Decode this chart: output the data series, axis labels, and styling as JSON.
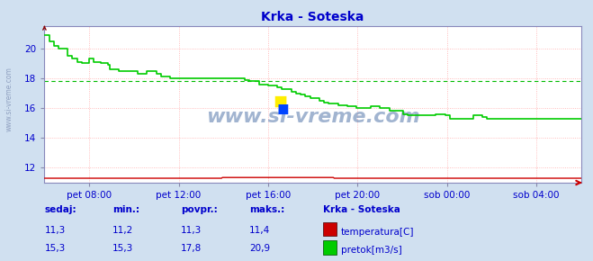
{
  "title": "Krka - Soteska",
  "bg_color": "#d0e0f0",
  "plot_bg_color": "#ffffff",
  "grid_color": "#ffaaaa",
  "avg_line_color": "#00bb00",
  "avg_line_value": 17.8,
  "x_tick_labels": [
    "pet 08:00",
    "pet 12:00",
    "pet 16:00",
    "pet 20:00",
    "sob 00:00",
    "sob 04:00"
  ],
  "x_tick_positions": [
    48,
    144,
    240,
    336,
    432,
    528
  ],
  "total_points": 288,
  "y_ticks": [
    12,
    14,
    16,
    18,
    20
  ],
  "ylim": [
    11.0,
    21.5
  ],
  "xlim": [
    0,
    576
  ],
  "temp_color": "#cc0000",
  "flow_color": "#00cc00",
  "watermark": "www.si-vreme.com",
  "legend_title": "Krka - Soteska",
  "legend_temp_label": "temperatura[C]",
  "legend_flow_label": "pretok[m3/s]",
  "stats_headers": [
    "sedaj:",
    "min.:",
    "povpr.:",
    "maks.:"
  ],
  "temp_stats": [
    "11,3",
    "11,2",
    "11,3",
    "11,4"
  ],
  "flow_stats": [
    "15,3",
    "15,3",
    "17,8",
    "20,9"
  ],
  "sidebar_text": "www.si-vreme.com",
  "flow_data": [
    [
      0,
      20.9
    ],
    [
      2,
      20.9
    ],
    [
      5,
      20.5
    ],
    [
      10,
      20.2
    ],
    [
      15,
      20.0
    ],
    [
      20,
      20.0
    ],
    [
      25,
      19.5
    ],
    [
      30,
      19.3
    ],
    [
      35,
      19.1
    ],
    [
      38,
      19.1
    ],
    [
      40,
      19.0
    ],
    [
      45,
      19.0
    ],
    [
      48,
      19.3
    ],
    [
      50,
      19.3
    ],
    [
      53,
      19.1
    ],
    [
      56,
      19.1
    ],
    [
      60,
      19.0
    ],
    [
      65,
      19.0
    ],
    [
      68,
      18.9
    ],
    [
      70,
      18.6
    ],
    [
      75,
      18.6
    ],
    [
      80,
      18.5
    ],
    [
      85,
      18.5
    ],
    [
      90,
      18.5
    ],
    [
      95,
      18.5
    ],
    [
      100,
      18.3
    ],
    [
      105,
      18.3
    ],
    [
      110,
      18.5
    ],
    [
      115,
      18.5
    ],
    [
      120,
      18.3
    ],
    [
      125,
      18.1
    ],
    [
      130,
      18.1
    ],
    [
      135,
      18.0
    ],
    [
      140,
      18.0
    ],
    [
      145,
      18.0
    ],
    [
      150,
      18.0
    ],
    [
      155,
      18.0
    ],
    [
      160,
      18.0
    ],
    [
      165,
      18.0
    ],
    [
      170,
      18.0
    ],
    [
      175,
      18.0
    ],
    [
      180,
      18.0
    ],
    [
      185,
      18.0
    ],
    [
      190,
      18.0
    ],
    [
      195,
      18.0
    ],
    [
      200,
      18.0
    ],
    [
      205,
      18.0
    ],
    [
      210,
      18.0
    ],
    [
      215,
      17.9
    ],
    [
      220,
      17.8
    ],
    [
      225,
      17.8
    ],
    [
      230,
      17.6
    ],
    [
      235,
      17.6
    ],
    [
      240,
      17.5
    ],
    [
      245,
      17.5
    ],
    [
      250,
      17.4
    ],
    [
      255,
      17.3
    ],
    [
      260,
      17.3
    ],
    [
      265,
      17.1
    ],
    [
      270,
      17.0
    ],
    [
      275,
      16.9
    ],
    [
      280,
      16.8
    ],
    [
      285,
      16.7
    ],
    [
      290,
      16.7
    ],
    [
      295,
      16.5
    ],
    [
      300,
      16.4
    ],
    [
      305,
      16.3
    ],
    [
      310,
      16.3
    ],
    [
      315,
      16.2
    ],
    [
      320,
      16.2
    ],
    [
      325,
      16.1
    ],
    [
      330,
      16.1
    ],
    [
      335,
      16.0
    ],
    [
      340,
      16.0
    ],
    [
      345,
      16.0
    ],
    [
      350,
      16.1
    ],
    [
      355,
      16.1
    ],
    [
      360,
      16.0
    ],
    [
      365,
      16.0
    ],
    [
      370,
      15.8
    ],
    [
      375,
      15.8
    ],
    [
      380,
      15.8
    ],
    [
      385,
      15.6
    ],
    [
      390,
      15.5
    ],
    [
      395,
      15.5
    ],
    [
      400,
      15.5
    ],
    [
      410,
      15.5
    ],
    [
      420,
      15.6
    ],
    [
      425,
      15.6
    ],
    [
      430,
      15.5
    ],
    [
      435,
      15.3
    ],
    [
      440,
      15.3
    ],
    [
      450,
      15.3
    ],
    [
      460,
      15.5
    ],
    [
      465,
      15.5
    ],
    [
      470,
      15.4
    ],
    [
      475,
      15.3
    ],
    [
      480,
      15.3
    ],
    [
      490,
      15.3
    ],
    [
      500,
      15.3
    ],
    [
      510,
      15.3
    ],
    [
      520,
      15.3
    ],
    [
      530,
      15.3
    ],
    [
      540,
      15.3
    ],
    [
      550,
      15.3
    ],
    [
      560,
      15.3
    ],
    [
      570,
      15.3
    ],
    [
      576,
      15.3
    ]
  ],
  "temp_data": [
    [
      0,
      11.3
    ],
    [
      95,
      11.3
    ],
    [
      96,
      11.3
    ],
    [
      190,
      11.3
    ],
    [
      191,
      11.35
    ],
    [
      310,
      11.35
    ],
    [
      311,
      11.3
    ],
    [
      420,
      11.3
    ],
    [
      421,
      11.3
    ],
    [
      576,
      11.3
    ]
  ]
}
